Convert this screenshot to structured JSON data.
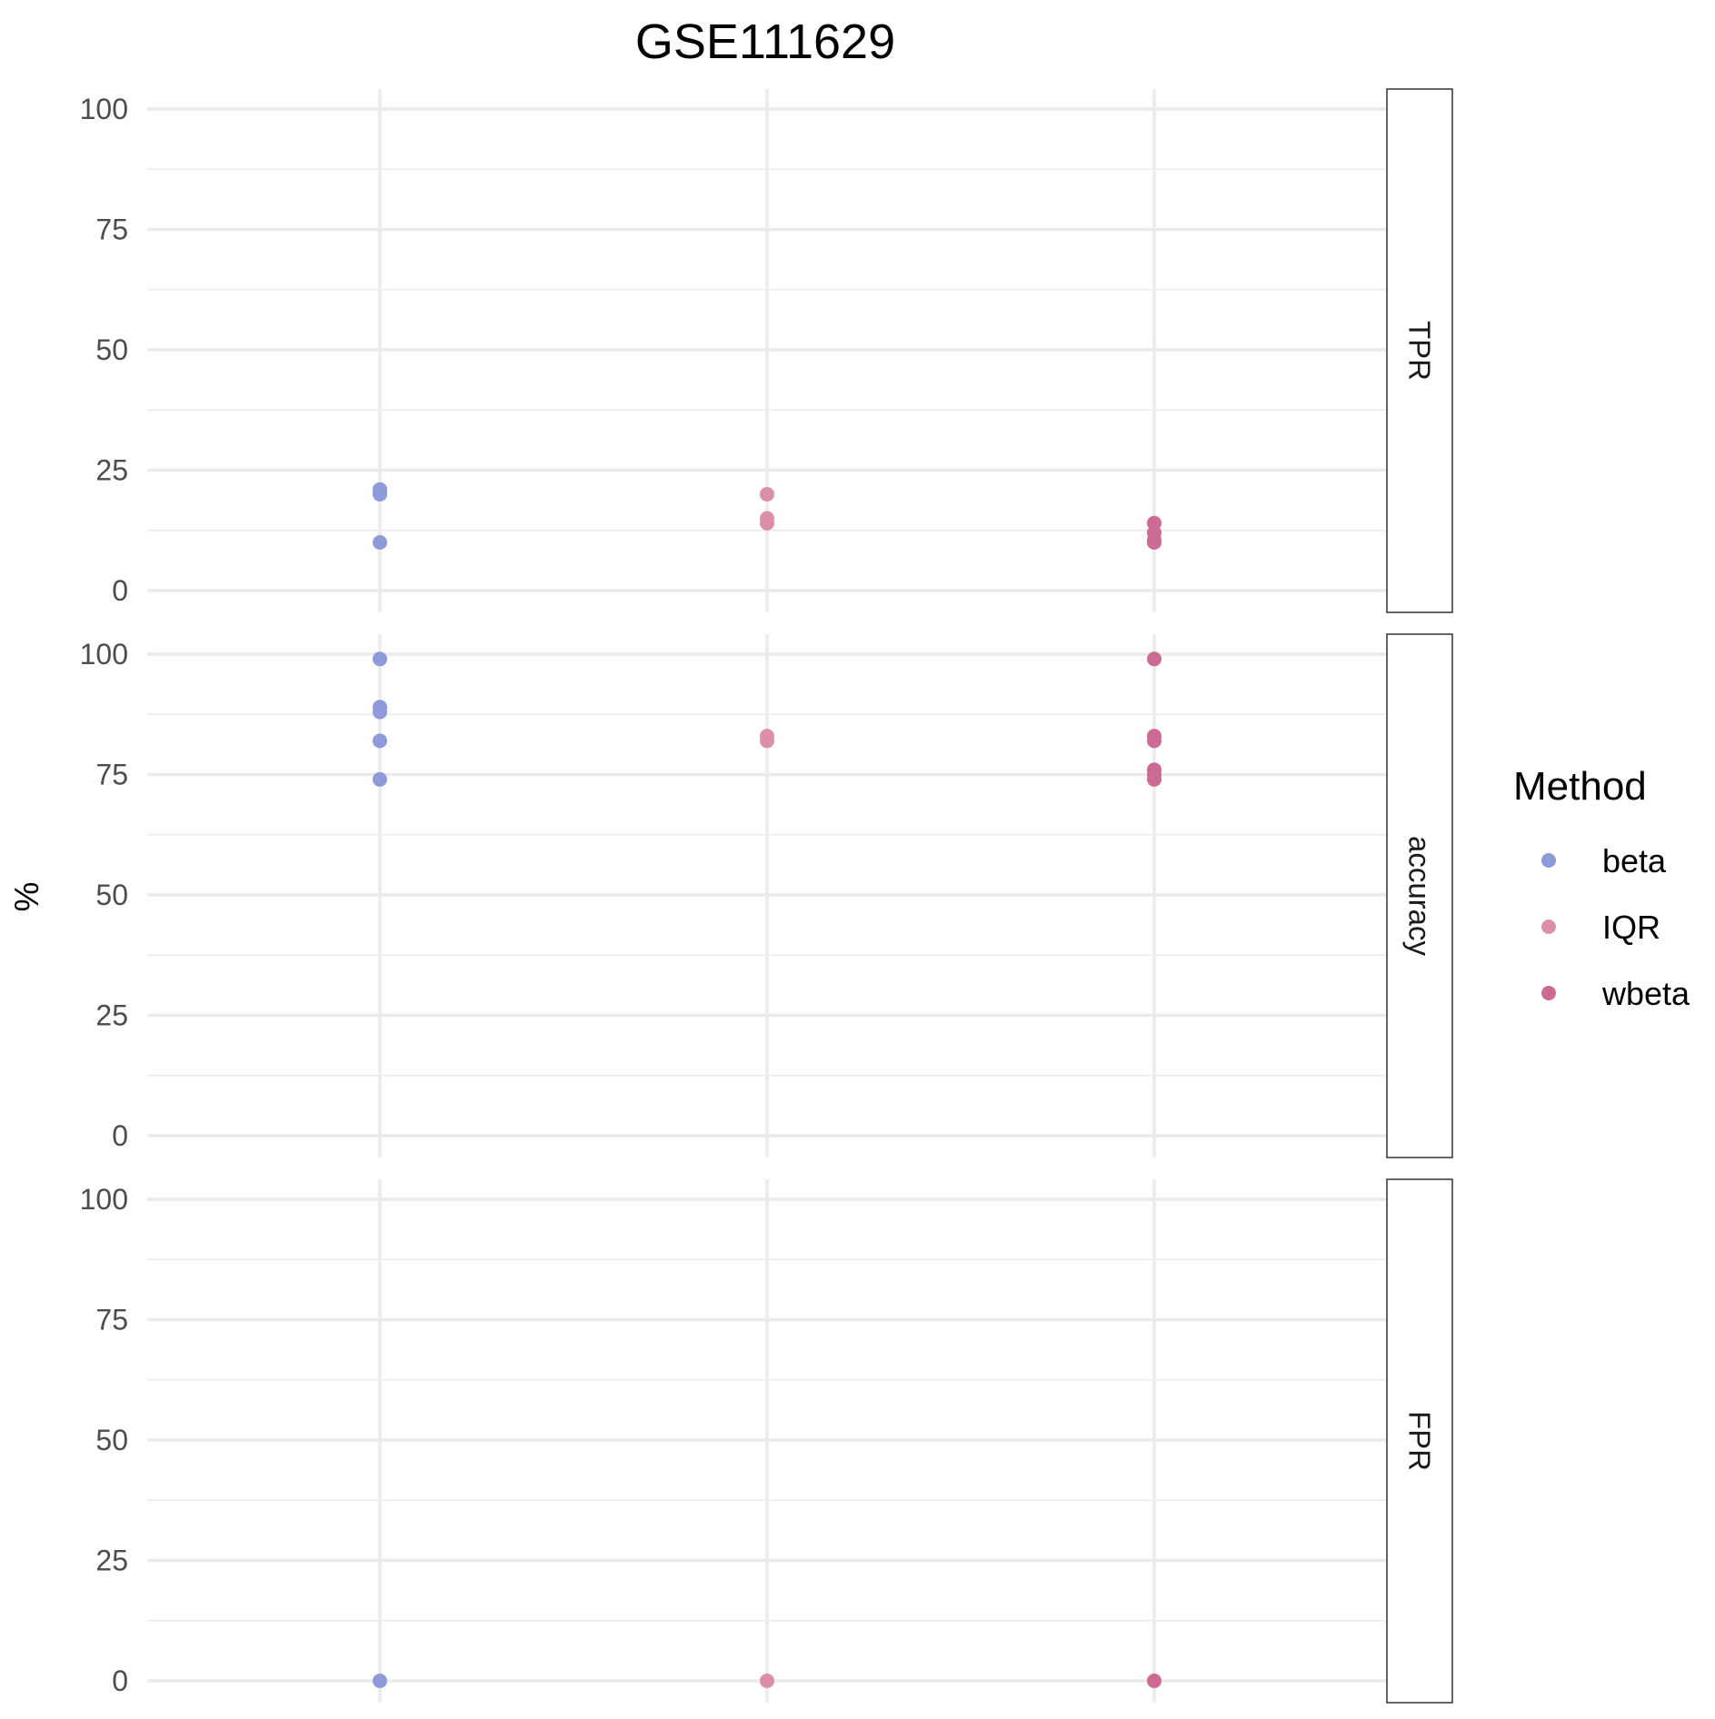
{
  "chart_data": {
    "type": "scatter",
    "title": "GSE111629",
    "ylabel": "%",
    "xlabel": "",
    "categories": [
      "beta",
      "IQR",
      "wbeta"
    ],
    "ylim": [
      0,
      100
    ],
    "y_ticks": [
      "0",
      "25",
      "50",
      "75",
      "100"
    ],
    "grid": true,
    "facets": [
      {
        "label": "TPR",
        "points": {
          "beta": [
            21,
            20.5,
            20,
            10
          ],
          "IQR": [
            20,
            15,
            14
          ],
          "wbeta": [
            14,
            12,
            10.5,
            10
          ]
        }
      },
      {
        "label": "accuracy",
        "points": {
          "beta": [
            99,
            89,
            88,
            82,
            74
          ],
          "IQR": [
            83,
            82
          ],
          "wbeta": [
            99,
            83,
            82,
            76,
            75,
            74
          ]
        }
      },
      {
        "label": "FPR",
        "points": {
          "beta": [
            0
          ],
          "IQR": [
            0
          ],
          "wbeta": [
            0
          ]
        }
      }
    ],
    "legend": {
      "title": "Method",
      "position": "right",
      "entries": [
        {
          "name": "beta",
          "color": "#8E9AD9"
        },
        {
          "name": "IQR",
          "color": "#DB90A8"
        },
        {
          "name": "wbeta",
          "color": "#CC6A94"
        }
      ]
    }
  }
}
